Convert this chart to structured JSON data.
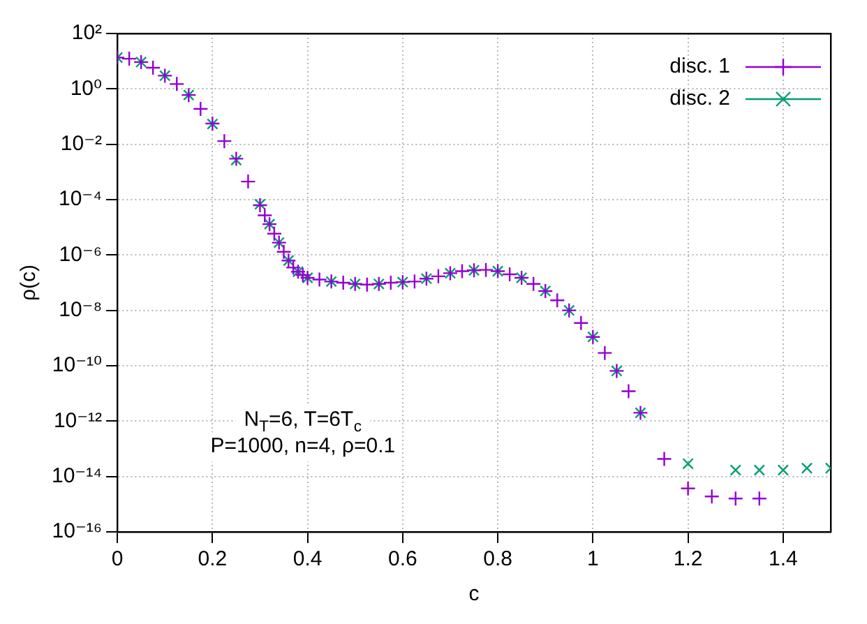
{
  "chart_data": {
    "type": "scatter",
    "xlabel": "c",
    "ylabel": "ρ(c)",
    "log": "y",
    "grid": true,
    "legend": "top right",
    "marker": "cross",
    "xlim": [
      0,
      1.5
    ],
    "xticks": [
      0,
      0.2,
      0.4,
      0.6,
      0.8,
      1,
      1.2,
      1.4
    ],
    "ylim": [
      1e-16,
      100
    ],
    "yticks": [
      {
        "value": 1e-16,
        "label": "10⁻¹⁶"
      },
      {
        "value": 1e-14,
        "label": "10⁻¹⁴"
      },
      {
        "value": 1e-12,
        "label": "10⁻¹²"
      },
      {
        "value": 1e-10,
        "label": "10⁻¹⁰"
      },
      {
        "value": 1e-08,
        "label": "10⁻⁸"
      },
      {
        "value": 1e-06,
        "label": "10⁻⁶"
      },
      {
        "value": 0.0001,
        "label": "10⁻⁴"
      },
      {
        "value": 0.01,
        "label": "10⁻²"
      },
      {
        "value": 1,
        "label": "10⁰"
      },
      {
        "value": 100,
        "label": "10²"
      }
    ],
    "annotations": [
      "N$_{T}$=6, T=6T$_{c}$",
      "P=1000, n=4, ρ=0.1"
    ],
    "series": [
      {
        "name": "disc. 1",
        "color": "#9400d3",
        "x": [
          0,
          0.025,
          0.05,
          0.075,
          0.1,
          0.125,
          0.15,
          0.175,
          0.2,
          0.225,
          0.25,
          0.275,
          0.3,
          0.31,
          0.32,
          0.33,
          0.34,
          0.35,
          0.36,
          0.37,
          0.38,
          0.39,
          0.4,
          0.425,
          0.45,
          0.475,
          0.5,
          0.525,
          0.55,
          0.575,
          0.6,
          0.625,
          0.65,
          0.675,
          0.7,
          0.725,
          0.75,
          0.775,
          0.8,
          0.825,
          0.85,
          0.875,
          0.9,
          0.925,
          0.95,
          0.975,
          1,
          1.025,
          1.05,
          1.075,
          1.1,
          1.15,
          1.2,
          1.25,
          1.3,
          1.35
        ],
        "values": [
          13.5,
          12.3,
          9.3,
          5.8,
          3,
          1.5,
          0.6,
          0.19,
          0.056,
          0.013,
          0.003,
          0.00045,
          6.3e-05,
          2.7e-05,
          1.3e-05,
          5.9e-06,
          2.8e-06,
          1.3e-06,
          6.3e-07,
          3.5e-07,
          2.5e-07,
          1.9e-07,
          1.5e-07,
          1.3e-07,
          1.1e-07,
          1e-07,
          9e-08,
          8.5e-08,
          9e-08,
          1e-07,
          1.05e-07,
          1.1e-07,
          1.4e-07,
          1.7e-07,
          2.2e-07,
          2.6e-07,
          2.8e-07,
          2.9e-07,
          2.6e-07,
          2e-07,
          1.5e-07,
          9e-08,
          5e-08,
          2.3e-08,
          1e-08,
          3.5e-09,
          1.1e-09,
          2.9e-10,
          6.5e-11,
          1.2e-11,
          2e-12,
          4.3e-14,
          3.7e-15,
          1.9e-15,
          1.6e-15,
          1.6e-15
        ]
      },
      {
        "name": "disc. 2",
        "color": "#009e73",
        "x": [
          0,
          0.05,
          0.1,
          0.15,
          0.2,
          0.25,
          0.3,
          0.32,
          0.34,
          0.36,
          0.38,
          0.4,
          0.45,
          0.5,
          0.55,
          0.6,
          0.65,
          0.7,
          0.75,
          0.8,
          0.85,
          0.9,
          0.95,
          1,
          1.05,
          1.1,
          1.2,
          1.3,
          1.35,
          1.4,
          1.45,
          1.5
        ],
        "values": [
          13.5,
          9.3,
          3,
          0.6,
          0.054,
          0.0027,
          6.8e-05,
          1.3e-05,
          2.8e-06,
          6.3e-07,
          2.5e-07,
          1.5e-07,
          1.1e-07,
          9e-08,
          9e-08,
          1.05e-07,
          1.4e-07,
          2.2e-07,
          2.8e-07,
          2.6e-07,
          1.5e-07,
          5e-08,
          1e-08,
          1.1e-09,
          6.5e-11,
          2e-12,
          2.9e-14,
          1.7e-14,
          1.7e-14,
          1.7e-14,
          2e-14,
          2e-14
        ]
      }
    ]
  }
}
